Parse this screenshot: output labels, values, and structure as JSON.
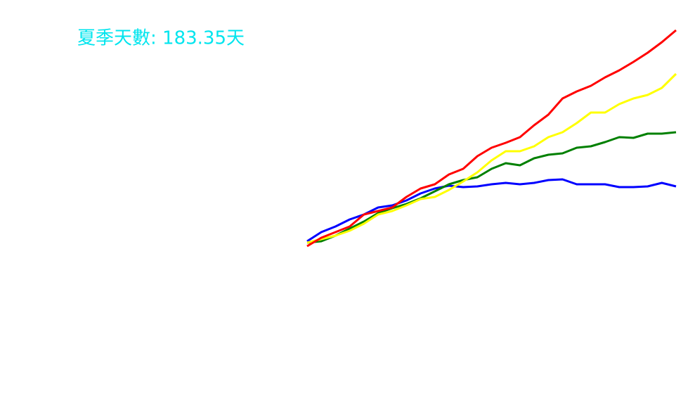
{
  "chart_data": {
    "type": "line",
    "title": "夏季天數: 183.35天",
    "title_color": "#00e5ee",
    "ylim": [
      0,
      590
    ],
    "series": [
      {
        "color": "#0000ff",
        "values": [
          247,
          260,
          268,
          278,
          285,
          295,
          298,
          305,
          315,
          322,
          326,
          324,
          325,
          328,
          330,
          328,
          330,
          334,
          335,
          328,
          328,
          328,
          324,
          324,
          325,
          330,
          325
        ]
      },
      {
        "color": "#008000",
        "values": [
          245,
          247,
          255,
          265,
          275,
          287,
          294,
          300,
          308,
          318,
          328,
          334,
          338,
          350,
          358,
          355,
          365,
          370,
          372,
          380,
          382,
          388,
          395,
          394,
          400,
          400,
          402
        ]
      },
      {
        "color": "#ffff00",
        "values": [
          245,
          250,
          255,
          262,
          272,
          285,
          290,
          298,
          307,
          310,
          320,
          332,
          345,
          362,
          375,
          375,
          382,
          395,
          402,
          415,
          430,
          430,
          442,
          450,
          455,
          465,
          485
        ]
      },
      {
        "color": "#ff0000",
        "values": [
          240,
          252,
          260,
          268,
          285,
          290,
          295,
          310,
          322,
          328,
          342,
          350,
          368,
          380,
          387,
          395,
          412,
          427,
          450,
          460,
          468,
          480,
          490,
          502,
          515,
          530,
          547
        ]
      }
    ]
  }
}
